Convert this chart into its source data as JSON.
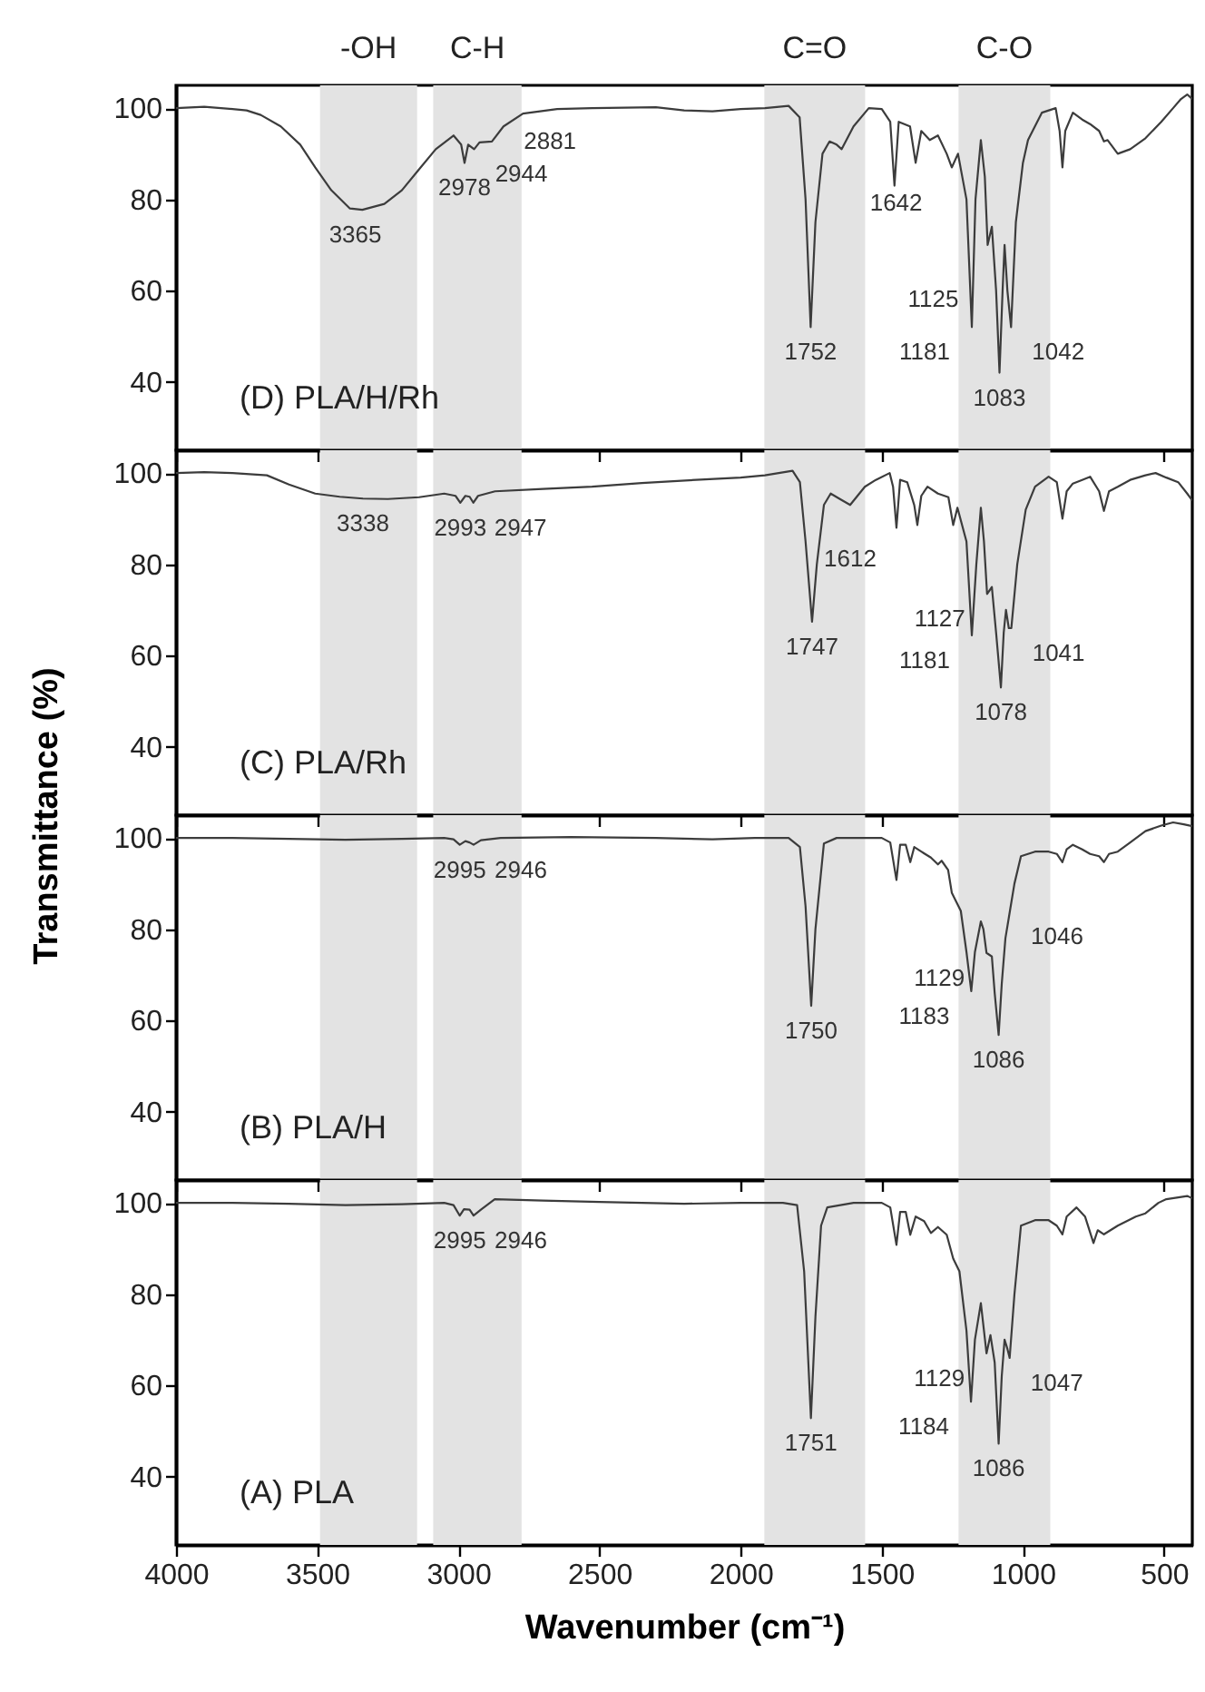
{
  "chart_data": [
    {
      "type": "line",
      "annotations": [
        "(D) PLA/H/Rh",
        {
          "text": "3365",
          "x": 3365,
          "y": 77.7
        },
        {
          "text": "2978",
          "x": 2978,
          "y": 88
        },
        {
          "text": "2944",
          "x": 2944,
          "y": 91
        },
        {
          "text": "2881",
          "x": 2881,
          "y": 92.7
        },
        {
          "text": "1642",
          "x": 1642,
          "y": 91
        },
        {
          "text": "1125",
          "x": 1125,
          "y": 70
        },
        {
          "text": "1752",
          "x": 1752,
          "y": 52
        },
        {
          "text": "1181",
          "x": 1181,
          "y": 52
        },
        {
          "text": "1042",
          "x": 1042,
          "y": 52
        },
        {
          "text": "1083",
          "x": 1083,
          "y": 42
        }
      ],
      "x": [
        4000,
        3900,
        3800,
        3750,
        3700,
        3629,
        3560,
        3507,
        3450,
        3384,
        3340,
        3262,
        3200,
        3139,
        3080,
        3017,
        2990,
        2978,
        2965,
        2944,
        2925,
        2881,
        2840,
        2771,
        2650,
        2526,
        2300,
        2200,
        2100,
        2000,
        1914,
        1830,
        1791,
        1770,
        1752,
        1735,
        1710,
        1685,
        1660,
        1642,
        1600,
        1546,
        1500,
        1470,
        1455,
        1440,
        1400,
        1380,
        1360,
        1330,
        1301,
        1270,
        1252,
        1230,
        1200,
        1181,
        1168,
        1149,
        1135,
        1125,
        1110,
        1095,
        1083,
        1072,
        1065,
        1055,
        1042,
        1025,
        1000,
        982,
        933,
        884,
        870,
        860,
        850,
        823,
        790,
        762,
        730,
        713,
        700,
        664,
        620,
        566,
        510,
        468,
        440,
        418,
        400
      ],
      "series": [
        {
          "color": "#3c3c3c",
          "values": [
            100,
            100.3,
            99.8,
            99.5,
            98.5,
            96,
            92,
            87,
            82,
            78,
            77.7,
            79,
            82,
            86.6,
            91,
            94,
            92,
            88,
            92,
            91,
            92.5,
            92.7,
            96,
            98.8,
            99.8,
            100,
            100.2,
            99.5,
            99.3,
            99.8,
            100,
            100.5,
            98,
            80,
            52,
            75,
            90,
            92.7,
            92,
            91,
            96,
            100,
            99.8,
            97,
            83,
            97,
            96,
            88,
            95,
            93,
            94,
            90,
            87,
            90,
            80,
            52,
            80,
            93,
            85,
            70,
            74,
            60,
            42,
            60,
            70,
            60,
            52,
            75,
            88,
            93,
            99,
            100,
            95,
            87,
            95,
            99,
            97.5,
            96.5,
            95,
            92.7,
            93,
            90,
            91,
            93.4,
            97,
            100,
            102,
            103,
            102
          ]
        }
      ],
      "xlim": [
        4000,
        400
      ],
      "xticks": [
        4000,
        3500,
        3000,
        2500,
        2000,
        1500,
        1000,
        500
      ],
      "ylim": [
        25,
        105
      ],
      "yticks": [
        40,
        60,
        80,
        100
      ],
      "tick_labels": "y",
      "bands": [
        {
          "axis": "x",
          "from": 3490,
          "to": 3146,
          "label": "-OH",
          "color": "#e3e3e3"
        },
        {
          "axis": "x",
          "from": 3089,
          "to": 2776,
          "label": "C-H",
          "color": "#e3e3e3"
        },
        {
          "axis": "x",
          "from": 1916,
          "to": 1559,
          "label": "C=O",
          "color": "#e3e3e3"
        },
        {
          "axis": "x",
          "from": 1228,
          "to": 903,
          "label": "C-O",
          "color": "#e3e3e3"
        }
      ]
    },
    {
      "type": "line",
      "ylabel": "Transmittance (%)",
      "annotations": [
        "(C) PLA/Rh",
        {
          "text": "3338",
          "x": 3338,
          "y": 94.4
        },
        {
          "text": "2993",
          "x": 2993,
          "y": 93.5
        },
        {
          "text": "2947",
          "x": 2947,
          "y": 93.5
        },
        {
          "text": "1612",
          "x": 1612,
          "y": 93
        },
        {
          "text": "1127",
          "x": 1127,
          "y": 73.5
        },
        {
          "text": "1747",
          "x": 1747,
          "y": 67.4
        },
        {
          "text": "1181",
          "x": 1181,
          "y": 64.4
        },
        {
          "text": "1041",
          "x": 1041,
          "y": 66
        },
        {
          "text": "1078",
          "x": 1078,
          "y": 53
        }
      ],
      "x": [
        4000,
        3900,
        3800,
        3678,
        3600,
        3507,
        3420,
        3338,
        3250,
        3139,
        3050,
        3010,
        2993,
        2975,
        2960,
        2947,
        2930,
        2870,
        2700,
        2526,
        2350,
        2158,
        2000,
        1914,
        1816,
        1790,
        1770,
        1747,
        1730,
        1705,
        1681,
        1640,
        1612,
        1560,
        1521,
        1472,
        1460,
        1448,
        1435,
        1410,
        1385,
        1374,
        1360,
        1338,
        1301,
        1264,
        1247,
        1232,
        1200,
        1181,
        1165,
        1149,
        1138,
        1127,
        1110,
        1095,
        1078,
        1068,
        1060,
        1050,
        1041,
        1020,
        990,
        957,
        909,
        880,
        860,
        845,
        823,
        790,
        762,
        730,
        713,
        695,
        664,
        620,
        566,
        530,
        492,
        450,
        418,
        400
      ],
      "series": [
        {
          "color": "#3c3c3c",
          "values": [
            100,
            100.2,
            100,
            99.5,
            97.5,
            95.5,
            94.8,
            94.4,
            94.3,
            94.7,
            95.5,
            95,
            93.5,
            95,
            94.8,
            93.5,
            95,
            96,
            96.5,
            97,
            97.8,
            98.5,
            99,
            99.5,
            100.5,
            98,
            85,
            67.4,
            80,
            93,
            95.5,
            94,
            93,
            97,
            98.5,
            100,
            97,
            88,
            98.5,
            98,
            93,
            88.6,
            95,
            97,
            95.5,
            94.7,
            88.6,
            92.4,
            85,
            64.4,
            80,
            92.4,
            85,
            73.5,
            75,
            65,
            53,
            65,
            70,
            66,
            66,
            80,
            92,
            97,
            99.2,
            98,
            90,
            96,
            97.7,
            98.5,
            99.2,
            96,
            91.7,
            96,
            97,
            98.5,
            99.5,
            100,
            99,
            98,
            95.5,
            94
          ]
        }
      ],
      "xlim": [
        4000,
        400
      ],
      "xticks": [
        4000,
        3500,
        3000,
        2500,
        2000,
        1500,
        1000,
        500
      ],
      "ylim": [
        25,
        105
      ],
      "yticks": [
        40,
        60,
        80,
        100
      ],
      "tick_labels": "y",
      "bands": [
        {
          "axis": "x",
          "from": 3490,
          "to": 3146,
          "color": "#e3e3e3"
        },
        {
          "axis": "x",
          "from": 3089,
          "to": 2776,
          "color": "#e3e3e3"
        },
        {
          "axis": "x",
          "from": 1916,
          "to": 1559,
          "color": "#e3e3e3"
        },
        {
          "axis": "x",
          "from": 1228,
          "to": 903,
          "color": "#e3e3e3"
        }
      ]
    },
    {
      "type": "line",
      "annotations": [
        "(B) PLA/H",
        {
          "text": "2995",
          "x": 2995,
          "y": 98.5
        },
        {
          "text": "2946",
          "x": 2946,
          "y": 98.5
        },
        {
          "text": "1046",
          "x": 1046,
          "y": 84
        },
        {
          "text": "1750",
          "x": 1750,
          "y": 63.2
        },
        {
          "text": "1183",
          "x": 1183,
          "y": 66.4
        },
        {
          "text": "1129",
          "x": 1129,
          "y": 74.8
        },
        {
          "text": "1086",
          "x": 1086,
          "y": 56.8
        }
      ],
      "x": [
        4000,
        3800,
        3600,
        3400,
        3200,
        3050,
        3017,
        2995,
        2975,
        2960,
        2946,
        2920,
        2850,
        2600,
        2300,
        2100,
        1950,
        1830,
        1790,
        1770,
        1750,
        1735,
        1705,
        1660,
        1500,
        1470,
        1448,
        1435,
        1415,
        1399,
        1385,
        1360,
        1326,
        1301,
        1288,
        1265,
        1252,
        1220,
        1200,
        1183,
        1170,
        1149,
        1140,
        1129,
        1110,
        1100,
        1086,
        1075,
        1062,
        1046,
        1030,
        1007,
        957,
        909,
        880,
        860,
        845,
        823,
        790,
        762,
        730,
        713,
        695,
        664,
        620,
        566,
        510,
        468,
        430,
        400
      ],
      "series": [
        {
          "color": "#3c3c3c",
          "values": [
            100,
            100,
            99.8,
            99.6,
            99.8,
            100,
            99.7,
            98.5,
            99.3,
            99,
            98.5,
            99.5,
            100,
            100.2,
            100,
            99.7,
            100,
            100,
            98,
            85,
            63.2,
            80,
            98.8,
            100,
            100,
            99,
            90.8,
            98.5,
            98.5,
            94.7,
            98,
            97,
            95.7,
            94.2,
            95,
            93,
            88,
            84,
            75,
            66.4,
            75,
            81.7,
            80,
            74.8,
            74,
            66,
            56.8,
            68,
            78,
            84,
            90,
            96,
            97,
            97,
            96.5,
            94.7,
            97.5,
            98.5,
            97.5,
            96.5,
            96,
            94.7,
            96.5,
            97,
            99,
            101.5,
            102.7,
            103.4,
            103,
            102.6
          ]
        }
      ],
      "xlim": [
        4000,
        400
      ],
      "xticks": [
        4000,
        3500,
        3000,
        2500,
        2000,
        1500,
        1000,
        500
      ],
      "ylim": [
        25,
        105
      ],
      "yticks": [
        40,
        60,
        80,
        100
      ],
      "tick_labels": "y",
      "bands": [
        {
          "axis": "x",
          "from": 3490,
          "to": 3146,
          "color": "#e3e3e3"
        },
        {
          "axis": "x",
          "from": 3089,
          "to": 2776,
          "color": "#e3e3e3"
        },
        {
          "axis": "x",
          "from": 1916,
          "to": 1559,
          "color": "#e3e3e3"
        },
        {
          "axis": "x",
          "from": 1228,
          "to": 903,
          "color": "#e3e3e3"
        }
      ]
    },
    {
      "type": "line",
      "xlabel": "Wavenumber (cm⁻¹)",
      "annotations": [
        "(A) PLA",
        {
          "text": "2995",
          "x": 2995,
          "y": 97.2
        },
        {
          "text": "2946",
          "x": 2946,
          "y": 97.2
        },
        {
          "text": "1751",
          "x": 1751,
          "y": 52.8
        },
        {
          "text": "1184",
          "x": 1184,
          "y": 56.4
        },
        {
          "text": "1129",
          "x": 1129,
          "y": 67
        },
        {
          "text": "1047",
          "x": 1047,
          "y": 66
        },
        {
          "text": "1086",
          "x": 1086,
          "y": 47.2
        }
      ],
      "x": [
        4000,
        3800,
        3600,
        3400,
        3200,
        3050,
        3017,
        2995,
        2980,
        2960,
        2946,
        2920,
        2871,
        2700,
        2500,
        2200,
        2000,
        1850,
        1800,
        1775,
        1751,
        1735,
        1715,
        1693,
        1600,
        1500,
        1470,
        1448,
        1435,
        1415,
        1399,
        1380,
        1350,
        1326,
        1301,
        1270,
        1247,
        1225,
        1200,
        1184,
        1170,
        1149,
        1138,
        1129,
        1115,
        1100,
        1086,
        1075,
        1065,
        1055,
        1047,
        1030,
        1007,
        957,
        909,
        880,
        860,
        845,
        810,
        780,
        750,
        735,
        713,
        664,
        600,
        566,
        520,
        492,
        418,
        400
      ],
      "series": [
        {
          "color": "#3c3c3c",
          "values": [
            100,
            100,
            99.8,
            99.5,
            99.7,
            100,
            99.5,
            97.2,
            98.6,
            98.5,
            97.2,
            98.5,
            100.8,
            100.5,
            100.2,
            99.8,
            100,
            100,
            99.5,
            85,
            52.8,
            75,
            95,
            99,
            100,
            100,
            99,
            90.8,
            98,
            98,
            93,
            97,
            96,
            93.4,
            94.7,
            93,
            87.8,
            85,
            72,
            56.4,
            70,
            78,
            72,
            67,
            71,
            65,
            47.2,
            62,
            70,
            68,
            66,
            80,
            95,
            96.2,
            96.2,
            95,
            93.1,
            97,
            99,
            97,
            91.2,
            94,
            93.1,
            95,
            97,
            97.7,
            100,
            100.8,
            101.5,
            101
          ]
        }
      ],
      "xlim": [
        4000,
        400
      ],
      "xticks": [
        4000,
        3500,
        3000,
        2500,
        2000,
        1500,
        1000,
        500
      ],
      "ylim": [
        25,
        105
      ],
      "yticks": [
        40,
        60,
        80,
        100
      ],
      "bands": [
        {
          "axis": "x",
          "from": 3490,
          "to": 3146,
          "color": "#e3e3e3"
        },
        {
          "axis": "x",
          "from": 3089,
          "to": 2776,
          "color": "#e3e3e3"
        },
        {
          "axis": "x",
          "from": 1916,
          "to": 1559,
          "color": "#e3e3e3"
        },
        {
          "axis": "x",
          "from": 1228,
          "to": 903,
          "color": "#e3e3e3"
        }
      ]
    }
  ]
}
